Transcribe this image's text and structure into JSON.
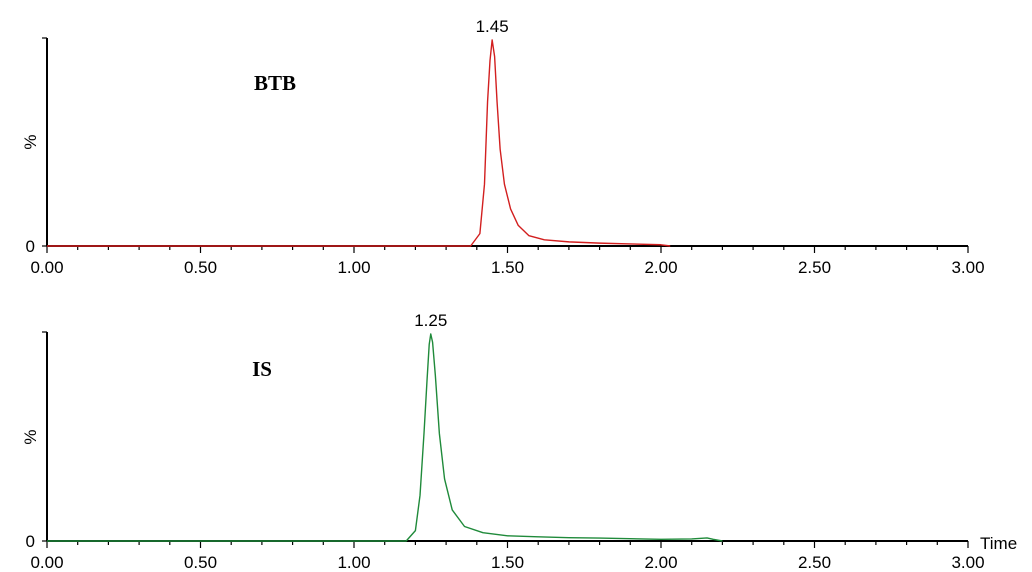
{
  "chart_data": [
    {
      "type": "line",
      "title": "BTB",
      "xlabel": "",
      "ylabel": "%",
      "y_ticks": [
        "0"
      ],
      "xlim": [
        0,
        3
      ],
      "ylim": [
        0,
        100
      ],
      "x_ticks": [
        "0.00",
        "0.50",
        "1.00",
        "1.50",
        "2.00",
        "2.50",
        "3.00"
      ],
      "peak_annotation": {
        "x": 1.45,
        "label": "1.45"
      },
      "color": "#d21f1f",
      "series": [
        {
          "x": [
            0.0,
            1.3,
            1.38,
            1.41,
            1.425,
            1.435,
            1.443,
            1.45,
            1.458,
            1.466,
            1.476,
            1.49,
            1.51,
            1.535,
            1.57,
            1.62,
            1.7,
            1.8,
            1.9,
            2.0,
            2.03
          ],
          "values": [
            0,
            0,
            0,
            6,
            30,
            70,
            90,
            100,
            92,
            70,
            47,
            30,
            18,
            10,
            5,
            3,
            2,
            1.4,
            1,
            0.6,
            0
          ]
        }
      ]
    },
    {
      "type": "line",
      "title": "IS",
      "xlabel": "Time",
      "ylabel": "%",
      "y_ticks": [
        "0"
      ],
      "xlim": [
        0,
        3
      ],
      "ylim": [
        0,
        100
      ],
      "x_ticks": [
        "0.00",
        "0.50",
        "1.00",
        "1.50",
        "2.00",
        "2.50",
        "3.00"
      ],
      "peak_annotation": {
        "x": 1.25,
        "label": "1.25"
      },
      "color": "#1f8a3a",
      "series": [
        {
          "x": [
            0.0,
            1.17,
            1.2,
            1.215,
            1.228,
            1.238,
            1.245,
            1.25,
            1.256,
            1.265,
            1.278,
            1.295,
            1.32,
            1.36,
            1.42,
            1.5,
            1.6,
            1.7,
            1.8,
            1.9,
            2.0,
            2.1,
            2.15,
            2.17,
            2.2
          ],
          "values": [
            0,
            0,
            5,
            22,
            52,
            78,
            95,
            100,
            96,
            80,
            52,
            30,
            15,
            7,
            4,
            2.5,
            2,
            1.6,
            1.4,
            1.1,
            0.8,
            1,
            1.5,
            0.8,
            0
          ]
        }
      ]
    }
  ]
}
